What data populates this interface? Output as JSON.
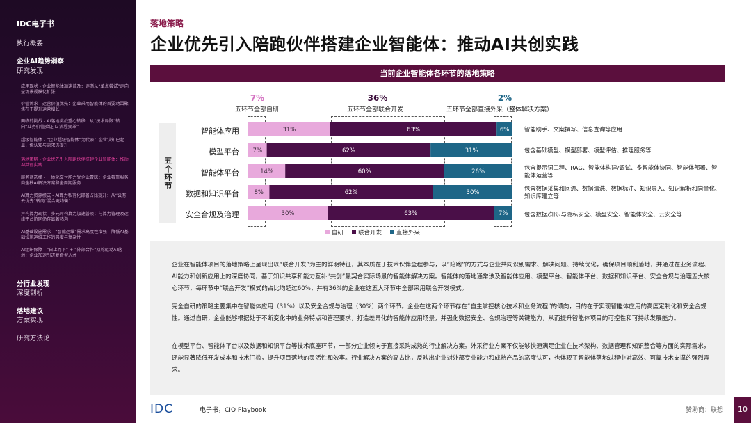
{
  "sidebar": {
    "brand": "IDC电子书",
    "exec_summary": "执行概要",
    "section_ai": "企业AI趋势洞察",
    "research": "研究发现",
    "sub_items": [
      "应用现状 - 企业智能体加速普及：逐渐从“单点尝试”走向全场景规模化扩张",
      "价值诉求 - 运营价值优先：企业采用智能体的首要动因聚焦在于提升运营增长",
      "面临的挑战 - AI落地挑战重心转移：从“技术局限”转向“业务价值验证 & 流程变革”",
      "超级智能体 - “企业超级智能体”为代表：企业认知已起显，但认知与需求仍提升",
      "落地策略 - 企业优先引入陪跑伙伴搭建企业智能体：推动AI共创实践",
      "服务商选择 - 一体化交付能力受企业青睐：企业看重服务商全栈AI解决方案和全周期服务",
      "AI算力资源模式 - AI算力私有化部署占比提升：从“公有云优先”转向“混合更均衡”",
      "异构算力现状 - 多元异构算力加速普及；与算力管理及运维平台协同仍存显著鸿沟",
      "AI基础设施需求 - “智能运维”需求高度性增强：降低AI基础设施运维工作的强度与复杂性",
      "AI组织保障 - “自上而下” + “外部合作”双轮驱动AI落地：企业加速引进复合型人才"
    ],
    "section_peer": "分行业发现",
    "deep_analysis": "深度剖析",
    "section_reco": "落地建议",
    "solutions": "方案实现",
    "methodology": "研究方法论"
  },
  "header": {
    "section_tag": "落地策略",
    "title": "企业优先引入陪跑伙伴搭建企业智能体：推动AI共创实践"
  },
  "chart_banner": "当前企业智能体各环节的落地策略",
  "chart_side_label": "五个环节",
  "chart_data": {
    "type": "bar",
    "stacked": true,
    "orientation": "horizontal",
    "categories": [
      "智能体应用",
      "模型平台",
      "智能体平台",
      "数据和知识平台",
      "安全合规及治理"
    ],
    "series": [
      {
        "name": "自研",
        "values": [
          31,
          7,
          14,
          8,
          30
        ],
        "color": "#e8a9dc"
      },
      {
        "name": "联合开发",
        "values": [
          63,
          62,
          60,
          62,
          63
        ],
        "color": "#4a0f48"
      },
      {
        "name": "直接外采",
        "values": [
          6,
          31,
          26,
          30,
          7
        ],
        "color": "#1e6687"
      }
    ],
    "value_labels": [
      [
        "31%",
        "63%",
        "6%"
      ],
      [
        "7%",
        "62%",
        "31%"
      ],
      [
        "14%",
        "60%",
        "26%"
      ],
      [
        "8%",
        "62%",
        "30%"
      ],
      [
        "30%",
        "63%",
        "7%"
      ]
    ],
    "headline": [
      {
        "pct": "7%",
        "label": "五环节全部自研",
        "color": "#d36fc0"
      },
      {
        "pct": "36%",
        "label": "五环节全部联合开发",
        "color": "#3a0c3a"
      },
      {
        "pct": "2%",
        "label": "五环节全部直接外采（整体解决方案）",
        "color": "#1e6687"
      }
    ],
    "descriptions": [
      "智能助手、文案撰写、信息查询等应用",
      "包含基础模型、模型部署、模型评估、推理服务等",
      "包含提示词工程、RAG、智能体构建/调试、多智能体协同、智能体部署、智能体运营等",
      "包含数据采集和回流、数据清洗、数据标注、知识导入、知识解析和向量化、知识库建立等",
      "包含数据/知识与隐私安全、模型安全、智能体安全、云安全等"
    ]
  },
  "paragraphs": [
    "企业在智能体项目的落地策略上呈现出以“联合开发”为主的鲜明特征，其本质在于技术伙伴全程参与，以“陪跑”的方式与企业共同识别需求、解决问题、持续优化，确保项目顺利落地，并通过在业务流程、AI能力和创新应用上的深度协同，基于知识共享和能力互补“共创”最契合实际场景的智能体解决方案。智能体的落地通常涉及智能体应用、模型平台、智能体平台、数据和知识平台、安全合规与治理五大核心环节，每环节中“联合开发”模式的占比均超过60%，并有36%的企业在这五大环节中全部采用联合开发模式。",
    "完全自研的策略主要集中在智能体应用（31%）以及安全合规与治理（30%）两个环节。企业在这两个环节存在“自主掌控核心技术和业务流程”的倾向，目的在于实现智能体应用的高度定制化和安全合规性。通过自研，企业能够根据处于不断变化中的业务特点和管理要求，打造差异化的智能体应用场景，并强化数据安全、合规治理等关键能力，从而提升智能体项目的可控性和可持续发展能力。",
    "在模型平台、智能体平台以及数据和知识平台等技术底座环节，一部分企业倾向于直接采购成熟的行业解决方案。外采行业方案不仅能够快速满足企业在技术架构、数据管理和知识整合等方面的实际需求，还能显著降低开发成本和技术门槛，提升项目落地的灵活性和效率。行业解决方案的高占比，反映出企业对外部专业能力和成熟产品的高度认可，也体现了智能体落地过程中对高效、可靠技术支撑的强烈需求。"
  ],
  "footer": {
    "logo": "IDC",
    "doc_type": "电子书，CIO Playbook",
    "sponsor": "赞助商：联想",
    "page": "10"
  }
}
